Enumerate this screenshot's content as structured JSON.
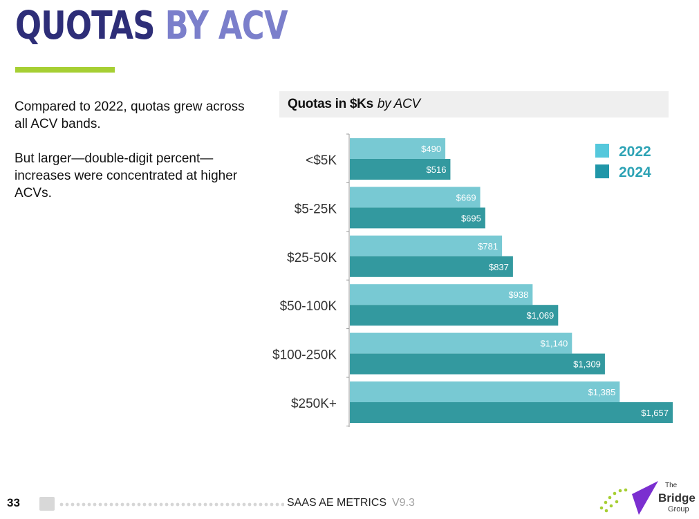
{
  "slide": {
    "title_part1": "QUOTAS",
    "title_part2": "BY ACV",
    "paragraph1": "Compared to 2022, quotas grew across all ACV bands.",
    "paragraph2": "But larger—double-digit percent—increases were concentrated at higher ACVs."
  },
  "chart_data": {
    "type": "bar",
    "orientation": "horizontal",
    "title_bold": "Quotas in $Ks",
    "title_italic": "by ACV",
    "categories": [
      "<$5K",
      "$5-25K",
      "$25-50K",
      "$50-100K",
      "$100-250K",
      "$250K+"
    ],
    "series": [
      {
        "name": "2022",
        "color": "#78c9d3",
        "values": [
          490,
          669,
          781,
          938,
          1140,
          1385
        ],
        "labels": [
          "$490",
          "$669",
          "$781",
          "$938",
          "$1,140",
          "$1,385"
        ]
      },
      {
        "name": "2024",
        "color": "#33999f",
        "values": [
          516,
          695,
          837,
          1069,
          1309,
          1657
        ],
        "labels": [
          "$516",
          "$695",
          "$837",
          "$1,069",
          "$1,309",
          "$1,657"
        ]
      }
    ],
    "legend_position": "top-right",
    "legend_colors": [
      "#55c8dc",
      "#2096a8"
    ],
    "legend_text_color": "#2ea3b5",
    "xlim": [
      0,
      1657
    ],
    "gridlines": false
  },
  "footer": {
    "page_number": "33",
    "label": "SAAS AE METRICS",
    "version": "V9.3"
  },
  "logo": {
    "line1": "The",
    "line2": "Bridge",
    "line3": "Group"
  }
}
